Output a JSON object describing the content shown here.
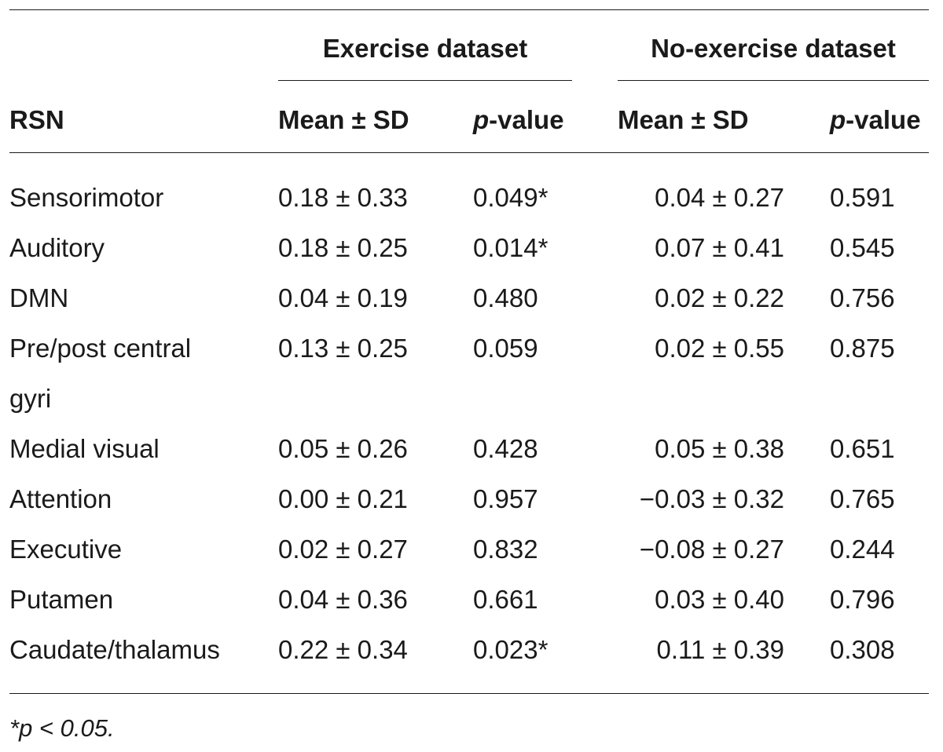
{
  "table": {
    "group_headers": {
      "exercise": "Exercise dataset",
      "no_exercise": "No-exercise dataset"
    },
    "column_headers": {
      "rsn": "RSN",
      "ex_mean": "Mean ± SD",
      "ex_p_italic": "p",
      "ex_p_rest": "-value",
      "nex_mean": "Mean ± SD",
      "nex_p_italic": "p",
      "nex_p_rest": "-value"
    },
    "rows": [
      {
        "rsn": "Sensorimotor",
        "ex_mean": "0.18 ± 0.33",
        "ex_p": "0.049*",
        "nex_mean": "0.04 ± 0.27",
        "nex_p": "0.591"
      },
      {
        "rsn": "Auditory",
        "ex_mean": "0.18 ± 0.25",
        "ex_p": "0.014*",
        "nex_mean": "0.07 ± 0.41",
        "nex_p": "0.545"
      },
      {
        "rsn": "DMN",
        "ex_mean": "0.04 ± 0.19",
        "ex_p": "0.480",
        "nex_mean": "0.02 ± 0.22",
        "nex_p": "0.756"
      },
      {
        "rsn_line1": "Pre/post central",
        "rsn_line2": "gyri",
        "ex_mean": "0.13 ± 0.25",
        "ex_p": "0.059",
        "nex_mean": "0.02 ± 0.55",
        "nex_p": "0.875"
      },
      {
        "rsn": "Medial visual",
        "ex_mean": "0.05 ± 0.26",
        "ex_p": "0.428",
        "nex_mean": "0.05 ± 0.38",
        "nex_p": "0.651"
      },
      {
        "rsn": "Attention",
        "ex_mean": "0.00 ± 0.21",
        "ex_p": "0.957",
        "nex_mean": "−0.03 ± 0.32",
        "nex_p": "0.765"
      },
      {
        "rsn": "Executive",
        "ex_mean": "0.02 ± 0.27",
        "ex_p": "0.832",
        "nex_mean": "−0.08 ± 0.27",
        "nex_p": "0.244"
      },
      {
        "rsn": "Putamen",
        "ex_mean": "0.04 ± 0.36",
        "ex_p": "0.661",
        "nex_mean": "0.03 ± 0.40",
        "nex_p": "0.796"
      },
      {
        "rsn": "Caudate/thalamus",
        "ex_mean": "0.22 ± 0.34",
        "ex_p": "0.023*",
        "nex_mean": "0.11 ± 0.39",
        "nex_p": "0.308"
      }
    ],
    "footnote": "*p < 0.05."
  }
}
